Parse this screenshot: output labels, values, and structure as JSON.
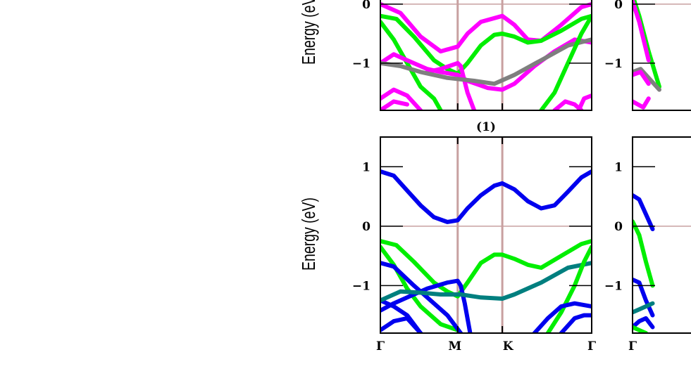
{
  "chart_data": [
    {
      "type": "line",
      "panel_label": "",
      "ylabel": "Energy (eV)",
      "ylim": [
        -1.8,
        1.5
      ],
      "visible_ylim_top": 0.2,
      "yticks": [
        0,
        -1
      ],
      "ytick_labels": [
        "0",
        "-1"
      ],
      "xticks": [
        "Γ",
        "M",
        "K",
        "Γ"
      ],
      "xtick_positions": [
        0,
        0.577,
        0.91,
        1.577
      ],
      "show_xtick_labels": false,
      "vlines": [
        0.577,
        0.91
      ],
      "hline_y": 0,
      "colors": {
        "magenta": "#ff00ff",
        "green": "#00ee00",
        "grey": "#7f7f7f"
      },
      "series": [
        {
          "color": "#ff00ff",
          "points": [
            [
              0,
              0.0
            ],
            [
              0.15,
              -0.15
            ],
            [
              0.3,
              -0.55
            ],
            [
              0.45,
              -0.8
            ],
            [
              0.577,
              -0.72
            ],
            [
              0.65,
              -0.5
            ],
            [
              0.75,
              -0.3
            ],
            [
              0.91,
              -0.2
            ],
            [
              1.0,
              -0.35
            ],
            [
              1.1,
              -0.6
            ],
            [
              1.2,
              -0.62
            ],
            [
              1.35,
              -0.35
            ],
            [
              1.5,
              -0.05
            ],
            [
              1.577,
              0.0
            ]
          ]
        },
        {
          "color": "#00ee00",
          "points": [
            [
              0,
              -0.2
            ],
            [
              0.12,
              -0.25
            ],
            [
              0.25,
              -0.55
            ],
            [
              0.4,
              -0.95
            ],
            [
              0.5,
              -1.1
            ],
            [
              0.577,
              -1.18
            ],
            [
              0.65,
              -1.0
            ],
            [
              0.75,
              -0.7
            ],
            [
              0.85,
              -0.52
            ],
            [
              0.91,
              -0.5
            ],
            [
              1.0,
              -0.55
            ],
            [
              1.1,
              -0.65
            ],
            [
              1.2,
              -0.62
            ],
            [
              1.35,
              -0.45
            ],
            [
              1.5,
              -0.25
            ],
            [
              1.577,
              -0.2
            ]
          ]
        },
        {
          "color": "#00ee00",
          "points": [
            [
              0,
              -0.3
            ],
            [
              0.1,
              -0.6
            ],
            [
              0.2,
              -1.0
            ],
            [
              0.3,
              -1.4
            ],
            [
              0.4,
              -1.6
            ],
            [
              0.45,
              -1.8
            ]
          ]
        },
        {
          "color": "#ff00ff",
          "points": [
            [
              0,
              -1.0
            ],
            [
              0.1,
              -0.85
            ],
            [
              0.2,
              -0.95
            ],
            [
              0.35,
              -1.1
            ],
            [
              0.45,
              -1.15
            ],
            [
              0.577,
              -1.2
            ],
            [
              0.65,
              -1.3
            ],
            [
              0.8,
              -1.42
            ],
            [
              0.91,
              -1.45
            ],
            [
              1.0,
              -1.35
            ],
            [
              1.15,
              -1.05
            ],
            [
              1.3,
              -0.8
            ],
            [
              1.45,
              -0.6
            ],
            [
              1.577,
              -0.65
            ]
          ]
        },
        {
          "color": "#ff00ff",
          "points": [
            [
              0.35,
              -1.15
            ],
            [
              0.45,
              -1.1
            ],
            [
              0.577,
              -1.0
            ],
            [
              0.6,
              -1.05
            ],
            [
              0.65,
              -1.5
            ],
            [
              0.7,
              -1.8
            ]
          ]
        },
        {
          "color": "#7f7f7f",
          "points": [
            [
              0,
              -1.0
            ],
            [
              0.15,
              -1.05
            ],
            [
              0.3,
              -1.15
            ],
            [
              0.5,
              -1.25
            ],
            [
              0.7,
              -1.3
            ],
            [
              0.85,
              -1.35
            ],
            [
              1.0,
              -1.2
            ],
            [
              1.2,
              -0.95
            ],
            [
              1.4,
              -0.7
            ],
            [
              1.577,
              -0.6
            ]
          ]
        },
        {
          "color": "#ff00ff",
          "points": [
            [
              0,
              -1.6
            ],
            [
              0.1,
              -1.45
            ],
            [
              0.2,
              -1.55
            ],
            [
              0.3,
              -1.8
            ]
          ]
        },
        {
          "color": "#ff00ff",
          "points": [
            [
              0,
              -1.8
            ],
            [
              0.1,
              -1.65
            ],
            [
              0.2,
              -1.7
            ]
          ]
        },
        {
          "color": "#00ee00",
          "points": [
            [
              1.2,
              -1.8
            ],
            [
              1.3,
              -1.5
            ],
            [
              1.4,
              -1.0
            ],
            [
              1.5,
              -0.5
            ],
            [
              1.577,
              -0.2
            ]
          ]
        },
        {
          "color": "#ff00ff",
          "points": [
            [
              1.3,
              -1.8
            ],
            [
              1.38,
              -1.65
            ],
            [
              1.45,
              -1.7
            ],
            [
              1.5,
              -1.8
            ]
          ]
        },
        {
          "color": "#ff00ff",
          "points": [
            [
              1.48,
              -1.8
            ],
            [
              1.52,
              -1.6
            ],
            [
              1.577,
              -1.55
            ]
          ]
        }
      ]
    },
    {
      "type": "line",
      "panel_label": "(1)",
      "ylabel": "Energy (eV)",
      "ylim": [
        -1.8,
        1.5
      ],
      "yticks": [
        1,
        0,
        -1
      ],
      "ytick_labels": [
        "1",
        "0",
        "-1"
      ],
      "xticks": [
        "Γ",
        "M",
        "K",
        "Γ"
      ],
      "xtick_positions": [
        0,
        0.577,
        0.91,
        1.577
      ],
      "show_xtick_labels": true,
      "vlines": [
        0.577,
        0.91
      ],
      "hline_y": 0,
      "colors": {
        "blue": "#0000ee",
        "green": "#00ee00",
        "teal": "#007f7f"
      },
      "series": [
        {
          "color": "#0000ee",
          "points": [
            [
              0,
              0.92
            ],
            [
              0.1,
              0.85
            ],
            [
              0.2,
              0.6
            ],
            [
              0.3,
              0.35
            ],
            [
              0.4,
              0.15
            ],
            [
              0.5,
              0.07
            ],
            [
              0.577,
              0.1
            ],
            [
              0.65,
              0.3
            ],
            [
              0.75,
              0.52
            ],
            [
              0.85,
              0.68
            ],
            [
              0.91,
              0.72
            ],
            [
              1.0,
              0.62
            ],
            [
              1.1,
              0.42
            ],
            [
              1.2,
              0.3
            ],
            [
              1.3,
              0.35
            ],
            [
              1.4,
              0.58
            ],
            [
              1.5,
              0.82
            ],
            [
              1.577,
              0.92
            ]
          ]
        },
        {
          "color": "#00ee00",
          "points": [
            [
              0,
              -0.25
            ],
            [
              0.12,
              -0.32
            ],
            [
              0.25,
              -0.6
            ],
            [
              0.4,
              -0.95
            ],
            [
              0.5,
              -1.1
            ],
            [
              0.577,
              -1.18
            ],
            [
              0.65,
              -0.95
            ],
            [
              0.75,
              -0.62
            ],
            [
              0.85,
              -0.48
            ],
            [
              0.91,
              -0.48
            ],
            [
              1.0,
              -0.55
            ],
            [
              1.1,
              -0.65
            ],
            [
              1.2,
              -0.7
            ],
            [
              1.35,
              -0.5
            ],
            [
              1.5,
              -0.3
            ],
            [
              1.577,
              -0.25
            ]
          ]
        },
        {
          "color": "#00ee00",
          "points": [
            [
              0,
              -0.35
            ],
            [
              0.1,
              -0.65
            ],
            [
              0.2,
              -1.05
            ],
            [
              0.3,
              -1.35
            ],
            [
              0.45,
              -1.65
            ],
            [
              0.577,
              -1.75
            ]
          ]
        },
        {
          "color": "#0000ee",
          "points": [
            [
              0,
              -0.62
            ],
            [
              0.1,
              -0.68
            ],
            [
              0.25,
              -1.0
            ],
            [
              0.4,
              -1.3
            ],
            [
              0.5,
              -1.5
            ],
            [
              0.6,
              -1.8
            ]
          ]
        },
        {
          "color": "#0000ee",
          "points": [
            [
              0,
              -1.42
            ],
            [
              0.1,
              -1.3
            ],
            [
              0.2,
              -1.2
            ],
            [
              0.35,
              -1.05
            ],
            [
              0.5,
              -0.95
            ],
            [
              0.577,
              -0.92
            ],
            [
              0.6,
              -1.0
            ],
            [
              0.63,
              -1.3
            ],
            [
              0.67,
              -1.8
            ]
          ]
        },
        {
          "color": "#0000ee",
          "points": [
            [
              0,
              -1.25
            ],
            [
              0.1,
              -1.35
            ],
            [
              0.2,
              -1.5
            ],
            [
              0.3,
              -1.8
            ]
          ]
        },
        {
          "color": "#007f7f",
          "points": [
            [
              0,
              -1.25
            ],
            [
              0.15,
              -1.1
            ],
            [
              0.3,
              -1.12
            ],
            [
              0.45,
              -1.15
            ],
            [
              0.6,
              -1.15
            ],
            [
              0.75,
              -1.2
            ],
            [
              0.91,
              -1.22
            ],
            [
              1.0,
              -1.15
            ],
            [
              1.2,
              -0.95
            ],
            [
              1.4,
              -0.7
            ],
            [
              1.577,
              -0.62
            ]
          ]
        },
        {
          "color": "#0000ee",
          "points": [
            [
              0,
              -1.75
            ],
            [
              0.1,
              -1.6
            ],
            [
              0.2,
              -1.55
            ],
            [
              0.3,
              -1.8
            ]
          ]
        },
        {
          "color": "#00ee00",
          "points": [
            [
              1.25,
              -1.8
            ],
            [
              1.35,
              -1.45
            ],
            [
              1.45,
              -1.0
            ],
            [
              1.52,
              -0.6
            ],
            [
              1.577,
              -0.35
            ]
          ]
        },
        {
          "color": "#0000ee",
          "points": [
            [
              1.15,
              -1.8
            ],
            [
              1.25,
              -1.55
            ],
            [
              1.35,
              -1.35
            ],
            [
              1.45,
              -1.3
            ],
            [
              1.577,
              -1.35
            ]
          ]
        },
        {
          "color": "#0000ee",
          "points": [
            [
              1.35,
              -1.8
            ],
            [
              1.45,
              -1.55
            ],
            [
              1.52,
              -1.5
            ],
            [
              1.577,
              -1.5
            ]
          ]
        }
      ]
    },
    {
      "type": "line",
      "panel_label": "",
      "ylabel": "",
      "ylim": [
        -1.8,
        1.5
      ],
      "visible_ylim_top": 0.2,
      "yticks": [
        0,
        -1
      ],
      "ytick_labels": [
        "0",
        "-1"
      ],
      "xticks": [
        "Γ"
      ],
      "xtick_positions": [
        0
      ],
      "show_xtick_labels": false,
      "vlines": [],
      "hline_y": 0,
      "colors": {
        "magenta": "#ff00ff",
        "green": "#00ee00",
        "grey": "#7f7f7f"
      },
      "series": [
        {
          "color": "#00ee00",
          "points": [
            [
              0,
              0.15
            ],
            [
              0.05,
              -0.2
            ],
            [
              0.12,
              -0.8
            ],
            [
              0.2,
              -1.4
            ]
          ]
        },
        {
          "color": "#ff00ff",
          "points": [
            [
              0,
              0.05
            ],
            [
              0.05,
              -0.3
            ],
            [
              0.12,
              -0.95
            ]
          ]
        },
        {
          "color": "#7f7f7f",
          "points": [
            [
              0,
              -1.15
            ],
            [
              0.06,
              -1.1
            ],
            [
              0.12,
              -1.25
            ],
            [
              0.2,
              -1.45
            ]
          ]
        },
        {
          "color": "#ff00ff",
          "points": [
            [
              0,
              -1.2
            ],
            [
              0.06,
              -1.15
            ],
            [
              0.12,
              -1.35
            ]
          ]
        },
        {
          "color": "#ff00ff",
          "points": [
            [
              0,
              -1.65
            ],
            [
              0.08,
              -1.75
            ],
            [
              0.12,
              -1.6
            ]
          ]
        }
      ]
    },
    {
      "type": "line",
      "panel_label": "",
      "ylabel": "",
      "ylim": [
        -1.8,
        1.5
      ],
      "yticks": [
        1,
        0,
        -1
      ],
      "ytick_labels": [
        "1",
        "0",
        "-1"
      ],
      "xticks": [
        "Γ"
      ],
      "xtick_positions": [
        0
      ],
      "show_xtick_labels": true,
      "vlines": [],
      "hline_y": 0,
      "colors": {
        "blue": "#0000ee",
        "green": "#00ee00",
        "teal": "#007f7f"
      },
      "series": [
        {
          "color": "#0000ee",
          "points": [
            [
              0,
              0.52
            ],
            [
              0.05,
              0.45
            ],
            [
              0.1,
              0.2
            ],
            [
              0.15,
              -0.05
            ]
          ]
        },
        {
          "color": "#00ee00",
          "points": [
            [
              0,
              0.08
            ],
            [
              0.05,
              -0.15
            ],
            [
              0.1,
              -0.6
            ],
            [
              0.15,
              -1.0
            ]
          ]
        },
        {
          "color": "#0000ee",
          "points": [
            [
              0,
              -0.9
            ],
            [
              0.05,
              -0.95
            ],
            [
              0.1,
              -1.25
            ],
            [
              0.15,
              -1.5
            ]
          ]
        },
        {
          "color": "#007f7f",
          "points": [
            [
              0,
              -1.45
            ],
            [
              0.05,
              -1.4
            ],
            [
              0.1,
              -1.35
            ],
            [
              0.15,
              -1.3
            ]
          ]
        },
        {
          "color": "#0000ee",
          "points": [
            [
              0,
              -1.7
            ],
            [
              0.05,
              -1.6
            ],
            [
              0.1,
              -1.55
            ],
            [
              0.15,
              -1.7
            ]
          ]
        },
        {
          "color": "#00ee00",
          "points": [
            [
              0,
              -1.7
            ],
            [
              0.05,
              -1.75
            ],
            [
              0.1,
              -1.8
            ]
          ]
        }
      ]
    }
  ]
}
